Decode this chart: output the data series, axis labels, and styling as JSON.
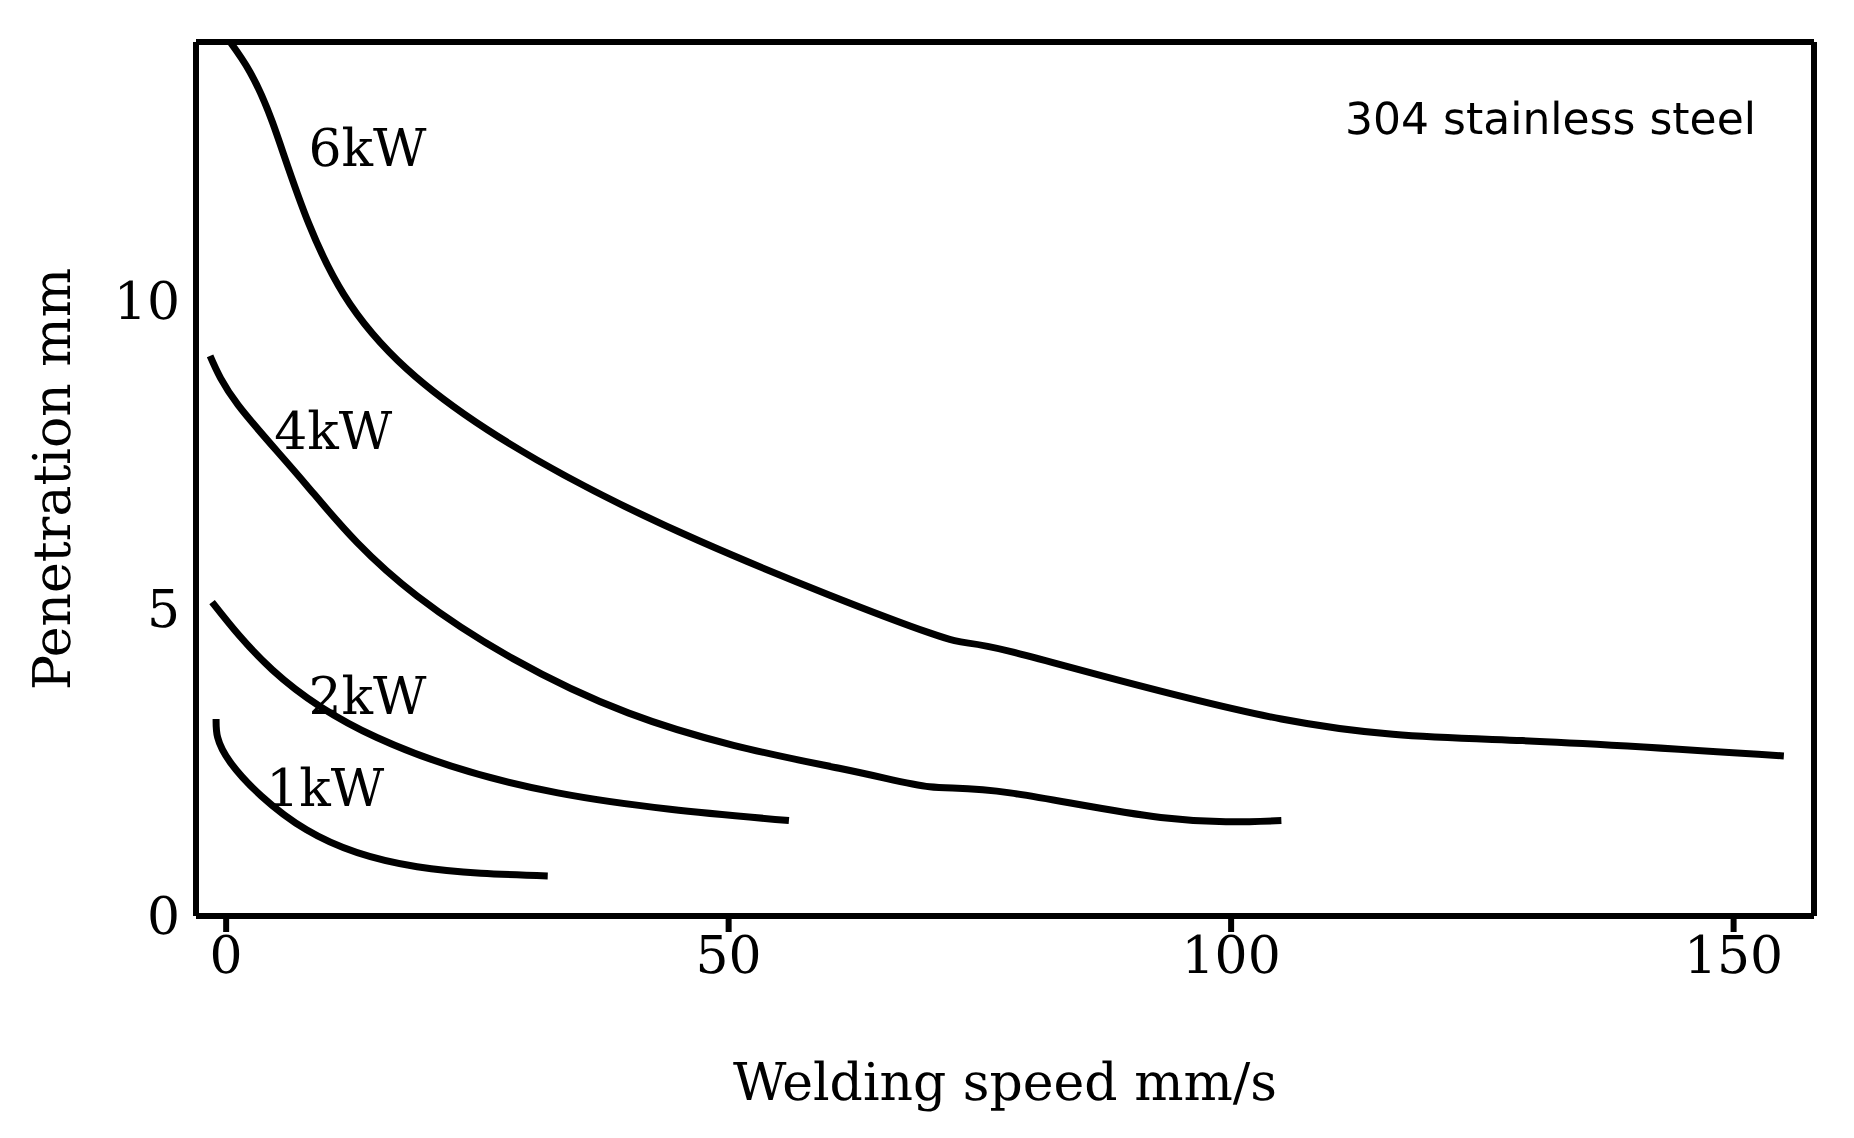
{
  "chart_data": {
    "type": "line",
    "xlabel": "Welding speed mm/s",
    "ylabel": "Penetration mm",
    "xlim": [
      -3,
      158
    ],
    "ylim": [
      0,
      14.2
    ],
    "xticks": [
      0,
      50,
      100,
      150
    ],
    "yticks": [
      0,
      5,
      10
    ],
    "legend": false,
    "marker": "none",
    "line_style": "solid",
    "annotations": [
      "304 stainless steel"
    ],
    "series": [
      {
        "name": "6kW",
        "color": "#000000",
        "x": [
          0.4,
          4.6,
          11.7,
          26,
          47,
          70,
          78,
          105,
          129,
          155
        ],
        "values": [
          14.2,
          12.9,
          10.1,
          7.9,
          6.1,
          4.6,
          4.3,
          3.2,
          2.85,
          2.6
        ]
      },
      {
        "name": "4kW",
        "color": "#000000",
        "x": [
          -1.6,
          1.2,
          8,
          19,
          40,
          61,
          70,
          78,
          93,
          105
        ],
        "values": [
          9.1,
          8.3,
          7.0,
          5.2,
          3.3,
          2.4,
          2.1,
          2.0,
          1.6,
          1.55
        ]
      },
      {
        "name": "2kW",
        "color": "#000000",
        "x": [
          -1.4,
          4.6,
          15,
          33,
          56
        ],
        "values": [
          5.1,
          4.0,
          2.9,
          2.0,
          1.55
        ]
      },
      {
        "name": "1kW",
        "color": "#000000",
        "x": [
          -1,
          0.4,
          8,
          19,
          32
        ],
        "values": [
          3.2,
          2.5,
          1.4,
          0.8,
          0.65
        ]
      }
    ]
  }
}
